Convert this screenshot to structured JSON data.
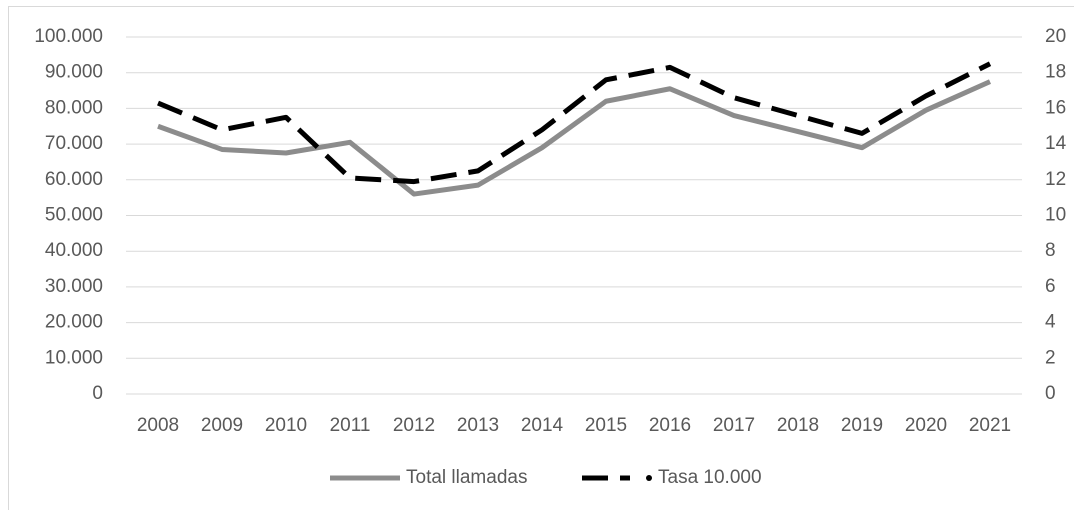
{
  "chart_data": {
    "type": "line",
    "categories": [
      "2008",
      "2009",
      "2010",
      "2011",
      "2012",
      "2013",
      "2014",
      "2015",
      "2016",
      "2017",
      "2018",
      "2019",
      "2020",
      "2021"
    ],
    "series": [
      {
        "name": "Total llamadas",
        "color": "#8c8c8c",
        "values": [
          75000,
          68500,
          67500,
          70500,
          56000,
          58500,
          69000,
          82000,
          85500,
          78000,
          73500,
          69000,
          79500,
          87500
        ]
      },
      {
        "name": "Tasa 10.000",
        "color": "#000000",
        "axis": "y2",
        "values": [
          16.3,
          14.8,
          15.5,
          12.1,
          11.9,
          12.5,
          14.8,
          17.6,
          18.3,
          16.6,
          15.6,
          14.6,
          16.7,
          18.5
        ]
      }
    ],
    "ylim": [
      0,
      100000
    ],
    "yticks": [
      0,
      {
        "value": 10000,
        "label": "10.000"
      },
      {
        "value": 20000,
        "label": "20.000"
      },
      {
        "value": 30000,
        "label": "30.000"
      },
      {
        "value": 40000,
        "label": "40.000"
      },
      {
        "value": 50000,
        "label": "50.000"
      },
      {
        "value": 60000,
        "label": "60.000"
      },
      {
        "value": 70000,
        "label": "70.000"
      },
      {
        "value": 80000,
        "label": "80.000"
      },
      {
        "value": 90000,
        "label": "90.000"
      },
      {
        "value": 100000,
        "label": "100.000"
      }
    ],
    "y2lim": [
      0,
      20
    ],
    "y2ticks": [
      0,
      2,
      4,
      6,
      8,
      10,
      12,
      14,
      16,
      18,
      20
    ],
    "grid": true,
    "legend": "bottom"
  }
}
